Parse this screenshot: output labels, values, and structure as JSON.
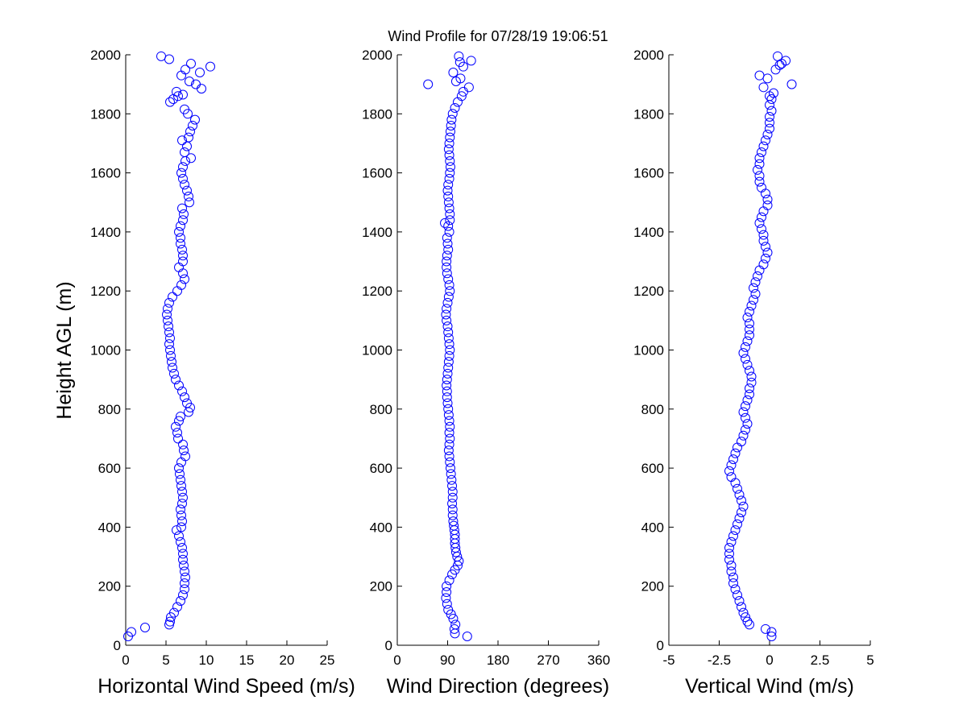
{
  "title": "Wind Profile for  07/28/19 19:06:51",
  "ylabel": "Height AGL (m)",
  "marker_color": "#0000ff",
  "axis_color": "#000000",
  "background": "#ffffff",
  "chart_data": [
    {
      "type": "scatter",
      "xlabel": "Horizontal Wind Speed (m/s)",
      "xlim": [
        0,
        25
      ],
      "xticks": [
        0,
        5,
        10,
        15,
        20,
        25
      ],
      "xtick_labels": [
        "0",
        "5",
        "10",
        "15",
        "20",
        "25"
      ],
      "ylim": [
        0,
        2000
      ],
      "yticks": [
        0,
        200,
        400,
        600,
        800,
        1000,
        1200,
        1400,
        1600,
        1800,
        2000
      ],
      "ytick_labels": [
        "0",
        "200",
        "400",
        "600",
        "800",
        "1000",
        "1200",
        "1400",
        "1600",
        "1800",
        "2000"
      ],
      "grid": false,
      "marker": "open-circle",
      "points": [
        [
          0.3,
          30
        ],
        [
          0.7,
          45
        ],
        [
          2.4,
          60
        ],
        [
          5.4,
          70
        ],
        [
          5.5,
          80
        ],
        [
          5.6,
          95
        ],
        [
          6.0,
          110
        ],
        [
          6.4,
          130
        ],
        [
          6.8,
          150
        ],
        [
          7.1,
          170
        ],
        [
          7.3,
          190
        ],
        [
          7.3,
          210
        ],
        [
          7.4,
          230
        ],
        [
          7.3,
          250
        ],
        [
          7.2,
          270
        ],
        [
          7.1,
          290
        ],
        [
          7.1,
          310
        ],
        [
          7.0,
          330
        ],
        [
          6.8,
          350
        ],
        [
          6.6,
          370
        ],
        [
          6.3,
          390
        ],
        [
          6.9,
          400
        ],
        [
          7.0,
          420
        ],
        [
          6.9,
          440
        ],
        [
          6.8,
          460
        ],
        [
          7.0,
          480
        ],
        [
          7.1,
          500
        ],
        [
          7.0,
          520
        ],
        [
          6.9,
          540
        ],
        [
          6.8,
          560
        ],
        [
          6.7,
          580
        ],
        [
          6.6,
          600
        ],
        [
          6.9,
          620
        ],
        [
          7.4,
          640
        ],
        [
          7.2,
          660
        ],
        [
          7.1,
          680
        ],
        [
          6.5,
          700
        ],
        [
          6.4,
          720
        ],
        [
          6.2,
          740
        ],
        [
          6.6,
          760
        ],
        [
          6.8,
          775
        ],
        [
          7.8,
          790
        ],
        [
          8.0,
          805
        ],
        [
          7.6,
          820
        ],
        [
          7.3,
          840
        ],
        [
          7.0,
          860
        ],
        [
          6.6,
          880
        ],
        [
          6.2,
          900
        ],
        [
          6.0,
          920
        ],
        [
          5.8,
          940
        ],
        [
          5.7,
          960
        ],
        [
          5.6,
          980
        ],
        [
          5.5,
          1000
        ],
        [
          5.4,
          1020
        ],
        [
          5.5,
          1040
        ],
        [
          5.4,
          1060
        ],
        [
          5.3,
          1080
        ],
        [
          5.2,
          1100
        ],
        [
          5.1,
          1120
        ],
        [
          5.2,
          1140
        ],
        [
          5.4,
          1160
        ],
        [
          5.8,
          1180
        ],
        [
          6.4,
          1200
        ],
        [
          6.9,
          1220
        ],
        [
          7.3,
          1240
        ],
        [
          7.1,
          1260
        ],
        [
          6.6,
          1280
        ],
        [
          7.1,
          1300
        ],
        [
          7.1,
          1320
        ],
        [
          7.0,
          1340
        ],
        [
          6.8,
          1360
        ],
        [
          6.8,
          1380
        ],
        [
          6.6,
          1400
        ],
        [
          6.8,
          1420
        ],
        [
          7.1,
          1440
        ],
        [
          7.2,
          1460
        ],
        [
          7.0,
          1480
        ],
        [
          7.9,
          1500
        ],
        [
          7.8,
          1520
        ],
        [
          7.6,
          1540
        ],
        [
          7.3,
          1560
        ],
        [
          7.1,
          1580
        ],
        [
          6.9,
          1600
        ],
        [
          7.1,
          1620
        ],
        [
          7.4,
          1640
        ],
        [
          8.1,
          1650
        ],
        [
          7.3,
          1670
        ],
        [
          7.6,
          1690
        ],
        [
          7.0,
          1710
        ],
        [
          7.8,
          1720
        ],
        [
          8.0,
          1740
        ],
        [
          8.3,
          1760
        ],
        [
          8.6,
          1780
        ],
        [
          7.7,
          1800
        ],
        [
          7.3,
          1815
        ],
        [
          5.5,
          1840
        ],
        [
          5.9,
          1850
        ],
        [
          6.5,
          1860
        ],
        [
          7.1,
          1865
        ],
        [
          6.3,
          1875
        ],
        [
          9.4,
          1885
        ],
        [
          8.7,
          1900
        ],
        [
          7.9,
          1910
        ],
        [
          6.9,
          1930
        ],
        [
          9.2,
          1940
        ],
        [
          7.4,
          1950
        ],
        [
          10.5,
          1960
        ],
        [
          8.1,
          1970
        ],
        [
          5.4,
          1985
        ],
        [
          4.4,
          1995
        ]
      ]
    },
    {
      "type": "scatter",
      "xlabel": "Wind Direction (degrees)",
      "xlim": [
        0,
        360
      ],
      "xticks": [
        0,
        90,
        180,
        270,
        360
      ],
      "xtick_labels": [
        "0",
        "90",
        "180",
        "270",
        "360"
      ],
      "ylim": [
        0,
        2000
      ],
      "yticks": [
        0,
        200,
        400,
        600,
        800,
        1000,
        1200,
        1400,
        1600,
        1800,
        2000
      ],
      "ytick_labels": [
        "0",
        "200",
        "400",
        "600",
        "800",
        "1000",
        "1200",
        "1400",
        "1600",
        "1800",
        "2000"
      ],
      "grid": false,
      "marker": "open-circle",
      "points": [
        [
          125,
          30
        ],
        [
          103,
          40
        ],
        [
          102,
          55
        ],
        [
          104,
          70
        ],
        [
          100,
          90
        ],
        [
          96,
          105
        ],
        [
          91,
          120
        ],
        [
          89,
          140
        ],
        [
          87,
          160
        ],
        [
          88,
          180
        ],
        [
          88,
          200
        ],
        [
          93,
          220
        ],
        [
          98,
          240
        ],
        [
          103,
          255
        ],
        [
          108,
          270
        ],
        [
          110,
          285
        ],
        [
          107,
          300
        ],
        [
          105,
          315
        ],
        [
          104,
          330
        ],
        [
          103,
          345
        ],
        [
          103,
          360
        ],
        [
          103,
          375
        ],
        [
          102,
          390
        ],
        [
          101,
          405
        ],
        [
          100,
          420
        ],
        [
          99,
          440
        ],
        [
          99,
          460
        ],
        [
          98,
          480
        ],
        [
          99,
          500
        ],
        [
          99,
          520
        ],
        [
          98,
          540
        ],
        [
          97,
          560
        ],
        [
          96,
          580
        ],
        [
          95,
          600
        ],
        [
          94,
          620
        ],
        [
          93,
          640
        ],
        [
          92,
          660
        ],
        [
          93,
          680
        ],
        [
          94,
          700
        ],
        [
          93,
          720
        ],
        [
          94,
          740
        ],
        [
          93,
          760
        ],
        [
          92,
          780
        ],
        [
          91,
          800
        ],
        [
          90,
          820
        ],
        [
          89,
          840
        ],
        [
          89,
          860
        ],
        [
          88,
          880
        ],
        [
          89,
          900
        ],
        [
          90,
          920
        ],
        [
          91,
          940
        ],
        [
          92,
          960
        ],
        [
          93,
          980
        ],
        [
          94,
          1000
        ],
        [
          93,
          1020
        ],
        [
          92,
          1040
        ],
        [
          91,
          1060
        ],
        [
          90,
          1080
        ],
        [
          88,
          1100
        ],
        [
          87,
          1120
        ],
        [
          88,
          1140
        ],
        [
          90,
          1160
        ],
        [
          92,
          1180
        ],
        [
          94,
          1200
        ],
        [
          93,
          1220
        ],
        [
          91,
          1240
        ],
        [
          89,
          1260
        ],
        [
          88,
          1280
        ],
        [
          88,
          1300
        ],
        [
          89,
          1320
        ],
        [
          91,
          1340
        ],
        [
          90,
          1360
        ],
        [
          89,
          1380
        ],
        [
          93,
          1400
        ],
        [
          91,
          1420
        ],
        [
          85,
          1430
        ],
        [
          94,
          1440
        ],
        [
          94,
          1460
        ],
        [
          93,
          1480
        ],
        [
          92,
          1500
        ],
        [
          91,
          1520
        ],
        [
          90,
          1540
        ],
        [
          91,
          1560
        ],
        [
          93,
          1580
        ],
        [
          94,
          1600
        ],
        [
          95,
          1620
        ],
        [
          94,
          1640
        ],
        [
          93,
          1660
        ],
        [
          92,
          1680
        ],
        [
          93,
          1700
        ],
        [
          94,
          1720
        ],
        [
          95,
          1740
        ],
        [
          96,
          1760
        ],
        [
          97,
          1780
        ],
        [
          99,
          1800
        ],
        [
          103,
          1820
        ],
        [
          108,
          1840
        ],
        [
          115,
          1860
        ],
        [
          118,
          1875
        ],
        [
          128,
          1890
        ],
        [
          55,
          1900
        ],
        [
          105,
          1910
        ],
        [
          113,
          1920
        ],
        [
          100,
          1940
        ],
        [
          118,
          1960
        ],
        [
          112,
          1975
        ],
        [
          132,
          1980
        ],
        [
          110,
          1995
        ]
      ]
    },
    {
      "type": "scatter",
      "xlabel": "Vertical Wind (m/s)",
      "xlim": [
        -5,
        5
      ],
      "xticks": [
        -5,
        -2.5,
        0,
        2.5,
        5
      ],
      "xtick_labels": [
        "-5",
        "-2.5",
        "0",
        "2.5",
        "5"
      ],
      "ylim": [
        0,
        2000
      ],
      "yticks": [
        0,
        200,
        400,
        600,
        800,
        1000,
        1200,
        1400,
        1600,
        1800,
        2000
      ],
      "ytick_labels": [
        "0",
        "200",
        "400",
        "600",
        "800",
        "1000",
        "1200",
        "1400",
        "1600",
        "1800",
        "2000"
      ],
      "grid": false,
      "marker": "open-circle",
      "points": [
        [
          0.1,
          30
        ],
        [
          0.1,
          45
        ],
        [
          -0.2,
          55
        ],
        [
          -1.0,
          70
        ],
        [
          -1.1,
          80
        ],
        [
          -1.2,
          95
        ],
        [
          -1.3,
          110
        ],
        [
          -1.4,
          130
        ],
        [
          -1.5,
          150
        ],
        [
          -1.6,
          170
        ],
        [
          -1.7,
          190
        ],
        [
          -1.8,
          210
        ],
        [
          -1.8,
          230
        ],
        [
          -1.9,
          250
        ],
        [
          -1.9,
          270
        ],
        [
          -2.0,
          290
        ],
        [
          -2.0,
          310
        ],
        [
          -2.0,
          330
        ],
        [
          -1.9,
          350
        ],
        [
          -1.8,
          370
        ],
        [
          -1.7,
          390
        ],
        [
          -1.6,
          410
        ],
        [
          -1.5,
          430
        ],
        [
          -1.4,
          450
        ],
        [
          -1.3,
          470
        ],
        [
          -1.4,
          490
        ],
        [
          -1.5,
          510
        ],
        [
          -1.6,
          530
        ],
        [
          -1.7,
          550
        ],
        [
          -1.9,
          570
        ],
        [
          -2.0,
          590
        ],
        [
          -1.9,
          610
        ],
        [
          -1.8,
          630
        ],
        [
          -1.7,
          650
        ],
        [
          -1.6,
          670
        ],
        [
          -1.4,
          690
        ],
        [
          -1.3,
          710
        ],
        [
          -1.2,
          730
        ],
        [
          -1.1,
          750
        ],
        [
          -1.2,
          770
        ],
        [
          -1.3,
          790
        ],
        [
          -1.2,
          810
        ],
        [
          -1.1,
          830
        ],
        [
          -1.0,
          850
        ],
        [
          -1.0,
          870
        ],
        [
          -0.9,
          890
        ],
        [
          -0.9,
          910
        ],
        [
          -1.0,
          930
        ],
        [
          -1.1,
          950
        ],
        [
          -1.2,
          970
        ],
        [
          -1.3,
          990
        ],
        [
          -1.2,
          1010
        ],
        [
          -1.1,
          1030
        ],
        [
          -1.0,
          1050
        ],
        [
          -1.0,
          1070
        ],
        [
          -1.0,
          1090
        ],
        [
          -1.1,
          1110
        ],
        [
          -1.0,
          1130
        ],
        [
          -0.9,
          1150
        ],
        [
          -0.8,
          1170
        ],
        [
          -0.7,
          1190
        ],
        [
          -0.8,
          1210
        ],
        [
          -0.7,
          1230
        ],
        [
          -0.6,
          1250
        ],
        [
          -0.5,
          1270
        ],
        [
          -0.3,
          1290
        ],
        [
          -0.2,
          1310
        ],
        [
          -0.1,
          1330
        ],
        [
          -0.2,
          1350
        ],
        [
          -0.3,
          1370
        ],
        [
          -0.3,
          1390
        ],
        [
          -0.4,
          1410
        ],
        [
          -0.5,
          1430
        ],
        [
          -0.4,
          1450
        ],
        [
          -0.3,
          1470
        ],
        [
          -0.1,
          1490
        ],
        [
          -0.1,
          1510
        ],
        [
          -0.2,
          1530
        ],
        [
          -0.4,
          1550
        ],
        [
          -0.5,
          1570
        ],
        [
          -0.5,
          1590
        ],
        [
          -0.6,
          1610
        ],
        [
          -0.5,
          1630
        ],
        [
          -0.5,
          1650
        ],
        [
          -0.4,
          1670
        ],
        [
          -0.3,
          1690
        ],
        [
          -0.2,
          1710
        ],
        [
          -0.1,
          1730
        ],
        [
          0.0,
          1750
        ],
        [
          0.0,
          1770
        ],
        [
          0.0,
          1790
        ],
        [
          0.1,
          1810
        ],
        [
          0.0,
          1830
        ],
        [
          0.1,
          1850
        ],
        [
          0.0,
          1860
        ],
        [
          0.2,
          1870
        ],
        [
          -0.3,
          1890
        ],
        [
          1.1,
          1900
        ],
        [
          -0.1,
          1920
        ],
        [
          -0.5,
          1930
        ],
        [
          0.3,
          1950
        ],
        [
          0.5,
          1965
        ],
        [
          0.6,
          1970
        ],
        [
          0.8,
          1980
        ],
        [
          0.4,
          1995
        ]
      ]
    }
  ]
}
